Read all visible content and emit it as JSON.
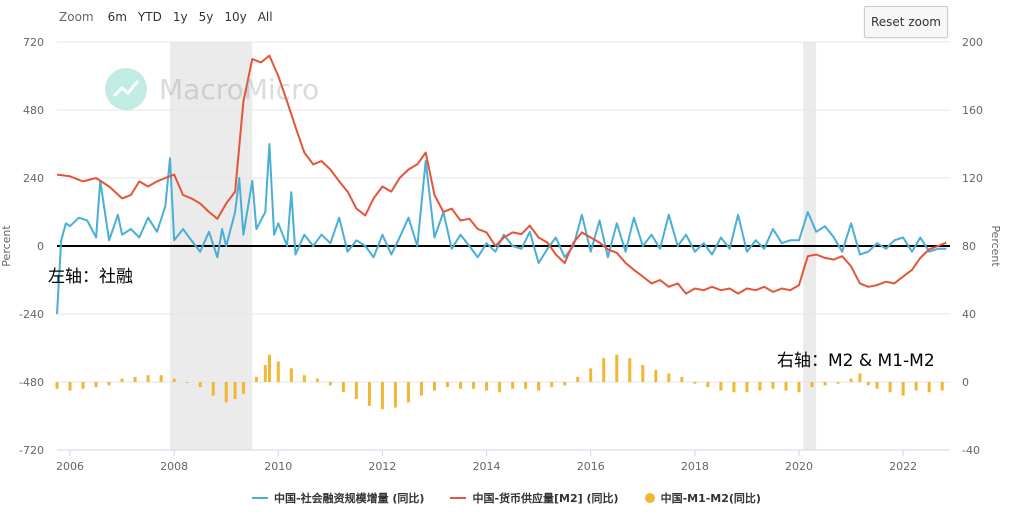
{
  "toolbar": {
    "zoom_label": "Zoom",
    "zoom_options": [
      "6m",
      "YTD",
      "1y",
      "5y",
      "10y",
      "All"
    ],
    "reset_label": "Reset zoom"
  },
  "watermark": {
    "text": "MacroMicro"
  },
  "annotations": {
    "left_axis_note": "左轴：社融",
    "right_axis_note": "右轴：M2 & M1-M2"
  },
  "legend": [
    {
      "label": "中国-社会融资规模增量 (同比)",
      "color": "#4aaed8",
      "kind": "line"
    },
    {
      "label": "中国-货币供应量[M2] (同比)",
      "color": "#e4553a",
      "kind": "line"
    },
    {
      "label": "中国-M1-M2(同比)",
      "color": "#f2b632",
      "kind": "dot"
    }
  ],
  "chart_data": {
    "type": "line",
    "x_ticks": [
      "2006",
      "2008",
      "2010",
      "2012",
      "2014",
      "2016",
      "2018",
      "2020",
      "2022"
    ],
    "y_left": {
      "label": "Percent",
      "ticks": [
        "720",
        "480",
        "240",
        "0",
        "-240",
        "-480",
        "-720"
      ],
      "range": [
        -720,
        720
      ]
    },
    "y_right_top": {
      "label": "Percent",
      "ticks": [
        "200",
        "160",
        "120",
        "80",
        "40"
      ],
      "range": [
        40,
        200
      ]
    },
    "y_right_bottom": {
      "ticks": [
        "0",
        "-40"
      ],
      "range": [
        -40,
        40
      ]
    },
    "shaded_periods": [
      {
        "from": 2007.92,
        "to": 2009.5
      },
      {
        "from": 2020.08,
        "to": 2020.33
      }
    ],
    "colors": {
      "tsf": "#4aaed8",
      "m2": "#e4553a",
      "m1m2": "#f2b632",
      "shade": "#ebebeb",
      "zero_line": "#000000"
    },
    "series": [
      {
        "name": "中国-社会融资规模增量 (同比)",
        "axis": "left",
        "points": [
          [
            2005.75,
            -240
          ],
          [
            2005.83,
            20
          ],
          [
            2005.92,
            80
          ],
          [
            2006.0,
            70
          ],
          [
            2006.17,
            100
          ],
          [
            2006.33,
            90
          ],
          [
            2006.5,
            30
          ],
          [
            2006.58,
            230
          ],
          [
            2006.75,
            20
          ],
          [
            2006.92,
            110
          ],
          [
            2007.0,
            40
          ],
          [
            2007.17,
            60
          ],
          [
            2007.33,
            30
          ],
          [
            2007.5,
            100
          ],
          [
            2007.67,
            50
          ],
          [
            2007.83,
            140
          ],
          [
            2007.92,
            310
          ],
          [
            2008.0,
            20
          ],
          [
            2008.17,
            60
          ],
          [
            2008.33,
            20
          ],
          [
            2008.5,
            -20
          ],
          [
            2008.67,
            50
          ],
          [
            2008.83,
            -40
          ],
          [
            2008.92,
            60
          ],
          [
            2009.0,
            0
          ],
          [
            2009.17,
            120
          ],
          [
            2009.25,
            240
          ],
          [
            2009.33,
            40
          ],
          [
            2009.5,
            230
          ],
          [
            2009.58,
            60
          ],
          [
            2009.75,
            120
          ],
          [
            2009.83,
            360
          ],
          [
            2009.92,
            40
          ],
          [
            2010.0,
            80
          ],
          [
            2010.17,
            0
          ],
          [
            2010.25,
            190
          ],
          [
            2010.33,
            -30
          ],
          [
            2010.5,
            40
          ],
          [
            2010.67,
            0
          ],
          [
            2010.83,
            40
          ],
          [
            2011.0,
            10
          ],
          [
            2011.17,
            100
          ],
          [
            2011.33,
            -20
          ],
          [
            2011.5,
            20
          ],
          [
            2011.67,
            0
          ],
          [
            2011.83,
            -40
          ],
          [
            2012.0,
            40
          ],
          [
            2012.17,
            -30
          ],
          [
            2012.33,
            30
          ],
          [
            2012.5,
            100
          ],
          [
            2012.67,
            0
          ],
          [
            2012.83,
            300
          ],
          [
            2013.0,
            30
          ],
          [
            2013.17,
            120
          ],
          [
            2013.33,
            -10
          ],
          [
            2013.5,
            40
          ],
          [
            2013.67,
            0
          ],
          [
            2013.83,
            -40
          ],
          [
            2014.0,
            10
          ],
          [
            2014.17,
            -20
          ],
          [
            2014.33,
            40
          ],
          [
            2014.5,
            0
          ],
          [
            2014.67,
            -10
          ],
          [
            2014.83,
            50
          ],
          [
            2015.0,
            -60
          ],
          [
            2015.17,
            -10
          ],
          [
            2015.33,
            30
          ],
          [
            2015.5,
            -40
          ],
          [
            2015.67,
            0
          ],
          [
            2015.83,
            110
          ],
          [
            2016.0,
            -20
          ],
          [
            2016.17,
            90
          ],
          [
            2016.33,
            -40
          ],
          [
            2016.5,
            80
          ],
          [
            2016.67,
            -20
          ],
          [
            2016.83,
            100
          ],
          [
            2017.0,
            0
          ],
          [
            2017.17,
            40
          ],
          [
            2017.33,
            -10
          ],
          [
            2017.5,
            110
          ],
          [
            2017.67,
            0
          ],
          [
            2017.83,
            40
          ],
          [
            2018.0,
            -20
          ],
          [
            2018.17,
            10
          ],
          [
            2018.33,
            -30
          ],
          [
            2018.5,
            30
          ],
          [
            2018.67,
            -10
          ],
          [
            2018.83,
            110
          ],
          [
            2019.0,
            -20
          ],
          [
            2019.17,
            20
          ],
          [
            2019.33,
            -10
          ],
          [
            2019.5,
            60
          ],
          [
            2019.67,
            10
          ],
          [
            2019.83,
            20
          ],
          [
            2020.0,
            20
          ],
          [
            2020.17,
            120
          ],
          [
            2020.33,
            50
          ],
          [
            2020.5,
            70
          ],
          [
            2020.67,
            30
          ],
          [
            2020.83,
            -20
          ],
          [
            2021.0,
            80
          ],
          [
            2021.17,
            -30
          ],
          [
            2021.33,
            -20
          ],
          [
            2021.5,
            10
          ],
          [
            2021.67,
            -10
          ],
          [
            2021.83,
            20
          ],
          [
            2022.0,
            30
          ],
          [
            2022.17,
            -20
          ],
          [
            2022.33,
            30
          ],
          [
            2022.5,
            -20
          ],
          [
            2022.67,
            -10
          ],
          [
            2022.83,
            -10
          ]
        ]
      },
      {
        "name": "中国-货币供应量[M2] (同比)",
        "axis": "right",
        "points": [
          [
            2005.75,
            122
          ],
          [
            2006.0,
            121
          ],
          [
            2006.25,
            118
          ],
          [
            2006.5,
            120
          ],
          [
            2006.75,
            115
          ],
          [
            2007.0,
            108
          ],
          [
            2007.17,
            110
          ],
          [
            2007.33,
            118
          ],
          [
            2007.5,
            115
          ],
          [
            2007.67,
            118
          ],
          [
            2007.83,
            120
          ],
          [
            2008.0,
            122
          ],
          [
            2008.17,
            110
          ],
          [
            2008.33,
            108
          ],
          [
            2008.5,
            105
          ],
          [
            2008.67,
            100
          ],
          [
            2008.83,
            96
          ],
          [
            2009.0,
            105
          ],
          [
            2009.17,
            112
          ],
          [
            2009.33,
            165
          ],
          [
            2009.5,
            190
          ],
          [
            2009.67,
            188
          ],
          [
            2009.83,
            192
          ],
          [
            2010.0,
            180
          ],
          [
            2010.17,
            165
          ],
          [
            2010.33,
            150
          ],
          [
            2010.5,
            135
          ],
          [
            2010.67,
            128
          ],
          [
            2010.83,
            130
          ],
          [
            2011.0,
            125
          ],
          [
            2011.17,
            118
          ],
          [
            2011.33,
            112
          ],
          [
            2011.5,
            102
          ],
          [
            2011.67,
            98
          ],
          [
            2011.83,
            108
          ],
          [
            2012.0,
            115
          ],
          [
            2012.17,
            112
          ],
          [
            2012.33,
            120
          ],
          [
            2012.5,
            125
          ],
          [
            2012.67,
            128
          ],
          [
            2012.83,
            135
          ],
          [
            2013.0,
            110
          ],
          [
            2013.17,
            100
          ],
          [
            2013.33,
            102
          ],
          [
            2013.5,
            95
          ],
          [
            2013.67,
            96
          ],
          [
            2013.83,
            90
          ],
          [
            2014.0,
            88
          ],
          [
            2014.17,
            80
          ],
          [
            2014.33,
            85
          ],
          [
            2014.5,
            88
          ],
          [
            2014.67,
            87
          ],
          [
            2014.83,
            92
          ],
          [
            2015.0,
            85
          ],
          [
            2015.17,
            82
          ],
          [
            2015.33,
            75
          ],
          [
            2015.5,
            70
          ],
          [
            2015.67,
            82
          ],
          [
            2015.83,
            88
          ],
          [
            2016.0,
            85
          ],
          [
            2016.17,
            82
          ],
          [
            2016.33,
            78
          ],
          [
            2016.5,
            76
          ],
          [
            2016.67,
            70
          ],
          [
            2016.83,
            66
          ],
          [
            2017.0,
            62
          ],
          [
            2017.17,
            58
          ],
          [
            2017.33,
            60
          ],
          [
            2017.5,
            56
          ],
          [
            2017.67,
            58
          ],
          [
            2017.83,
            52
          ],
          [
            2018.0,
            55
          ],
          [
            2018.17,
            54
          ],
          [
            2018.33,
            56
          ],
          [
            2018.5,
            54
          ],
          [
            2018.67,
            55
          ],
          [
            2018.83,
            52
          ],
          [
            2019.0,
            55
          ],
          [
            2019.17,
            54
          ],
          [
            2019.33,
            56
          ],
          [
            2019.5,
            53
          ],
          [
            2019.67,
            55
          ],
          [
            2019.83,
            54
          ],
          [
            2020.0,
            57
          ],
          [
            2020.17,
            74
          ],
          [
            2020.33,
            75
          ],
          [
            2020.5,
            73
          ],
          [
            2020.67,
            72
          ],
          [
            2020.83,
            74
          ],
          [
            2021.0,
            68
          ],
          [
            2021.17,
            58
          ],
          [
            2021.33,
            56
          ],
          [
            2021.5,
            57
          ],
          [
            2021.67,
            59
          ],
          [
            2021.83,
            58
          ],
          [
            2022.0,
            62
          ],
          [
            2022.17,
            66
          ],
          [
            2022.33,
            73
          ],
          [
            2022.5,
            78
          ],
          [
            2022.67,
            80
          ],
          [
            2022.83,
            82
          ]
        ]
      },
      {
        "name": "中国-M1-M2(同比)",
        "axis": "right_bottom",
        "type": "bar",
        "points": [
          [
            2005.75,
            -4
          ],
          [
            2006.0,
            -5
          ],
          [
            2006.25,
            -4
          ],
          [
            2006.5,
            -3
          ],
          [
            2006.75,
            -2
          ],
          [
            2007.0,
            2
          ],
          [
            2007.25,
            3
          ],
          [
            2007.5,
            4
          ],
          [
            2007.75,
            4
          ],
          [
            2008.0,
            2
          ],
          [
            2008.25,
            0
          ],
          [
            2008.5,
            -3
          ],
          [
            2008.75,
            -8
          ],
          [
            2009.0,
            -12
          ],
          [
            2009.17,
            -10
          ],
          [
            2009.33,
            -7
          ],
          [
            2009.58,
            3
          ],
          [
            2009.75,
            10
          ],
          [
            2009.83,
            16
          ],
          [
            2010.0,
            12
          ],
          [
            2010.25,
            8
          ],
          [
            2010.5,
            4
          ],
          [
            2010.75,
            2
          ],
          [
            2011.0,
            -2
          ],
          [
            2011.25,
            -6
          ],
          [
            2011.5,
            -10
          ],
          [
            2011.75,
            -14
          ],
          [
            2012.0,
            -16
          ],
          [
            2012.25,
            -15
          ],
          [
            2012.5,
            -12
          ],
          [
            2012.75,
            -8
          ],
          [
            2013.0,
            -5
          ],
          [
            2013.25,
            -3
          ],
          [
            2013.5,
            -4
          ],
          [
            2013.75,
            -4
          ],
          [
            2014.0,
            -5
          ],
          [
            2014.25,
            -6
          ],
          [
            2014.5,
            -4
          ],
          [
            2014.75,
            -4
          ],
          [
            2015.0,
            -5
          ],
          [
            2015.25,
            -3
          ],
          [
            2015.5,
            -2
          ],
          [
            2015.75,
            3
          ],
          [
            2016.0,
            8
          ],
          [
            2016.25,
            14
          ],
          [
            2016.5,
            16
          ],
          [
            2016.75,
            14
          ],
          [
            2017.0,
            10
          ],
          [
            2017.25,
            7
          ],
          [
            2017.5,
            5
          ],
          [
            2017.75,
            3
          ],
          [
            2018.0,
            -1
          ],
          [
            2018.25,
            -3
          ],
          [
            2018.5,
            -5
          ],
          [
            2018.75,
            -6
          ],
          [
            2019.0,
            -6
          ],
          [
            2019.25,
            -5
          ],
          [
            2019.5,
            -4
          ],
          [
            2019.75,
            -5
          ],
          [
            2020.0,
            -6
          ],
          [
            2020.25,
            -3
          ],
          [
            2020.5,
            -2
          ],
          [
            2020.75,
            -1
          ],
          [
            2021.0,
            2
          ],
          [
            2021.17,
            5
          ],
          [
            2021.33,
            -2
          ],
          [
            2021.5,
            -4
          ],
          [
            2021.75,
            -6
          ],
          [
            2022.0,
            -8
          ],
          [
            2022.25,
            -5
          ],
          [
            2022.5,
            -6
          ],
          [
            2022.75,
            -5
          ]
        ]
      }
    ]
  }
}
